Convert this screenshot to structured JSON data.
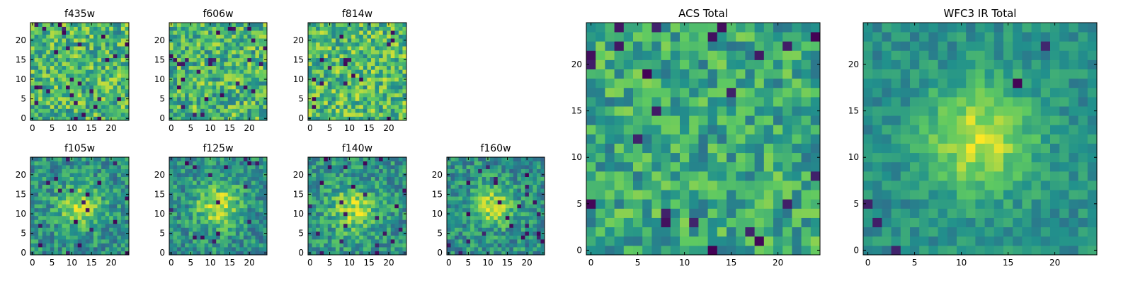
{
  "figure": {
    "background": "#ffffff",
    "colormap": "viridis",
    "colormap_stops": [
      "#440154",
      "#3b528b",
      "#21918c",
      "#5ec962",
      "#fde725"
    ]
  },
  "chart_data": [
    {
      "type": "heatmap",
      "title": "f435w",
      "xlabel": "",
      "ylabel": "",
      "size": 25,
      "xlim": [
        0,
        24
      ],
      "ylim": [
        0,
        24
      ],
      "xticks": [
        0,
        5,
        10,
        15,
        20
      ],
      "yticks": [
        0,
        5,
        10,
        15,
        20
      ],
      "noise_level": 0.26,
      "blob_amplitude": 0.0,
      "blob_center": [
        12,
        12
      ],
      "blob_sigma": 4,
      "base_level": 0.66,
      "dark_fraction": 0.04,
      "seed": 11
    },
    {
      "type": "heatmap",
      "title": "f606w",
      "xlabel": "",
      "ylabel": "",
      "size": 25,
      "xlim": [
        0,
        24
      ],
      "ylim": [
        0,
        24
      ],
      "xticks": [
        0,
        5,
        10,
        15,
        20
      ],
      "yticks": [
        0,
        5,
        10,
        15,
        20
      ],
      "noise_level": 0.26,
      "blob_amplitude": 0.0,
      "blob_center": [
        12,
        12
      ],
      "blob_sigma": 4,
      "base_level": 0.66,
      "dark_fraction": 0.04,
      "seed": 23
    },
    {
      "type": "heatmap",
      "title": "f814w",
      "xlabel": "",
      "ylabel": "",
      "size": 25,
      "xlim": [
        0,
        24
      ],
      "ylim": [
        0,
        24
      ],
      "xticks": [
        0,
        5,
        10,
        15,
        20
      ],
      "yticks": [
        0,
        5,
        10,
        15,
        20
      ],
      "noise_level": 0.26,
      "blob_amplitude": 0.0,
      "blob_center": [
        12,
        12
      ],
      "blob_sigma": 4,
      "base_level": 0.68,
      "dark_fraction": 0.03,
      "seed": 37
    },
    {
      "type": "heatmap",
      "title": "f105w",
      "xlabel": "",
      "ylabel": "",
      "size": 25,
      "xlim": [
        0,
        24
      ],
      "ylim": [
        0,
        24
      ],
      "xticks": [
        0,
        5,
        10,
        15,
        20
      ],
      "yticks": [
        0,
        5,
        10,
        15,
        20
      ],
      "noise_level": 0.2,
      "blob_amplitude": 0.35,
      "blob_center": [
        12,
        12
      ],
      "blob_sigma": 4,
      "base_level": 0.5,
      "dark_fraction": 0.03,
      "seed": 41
    },
    {
      "type": "heatmap",
      "title": "f125w",
      "xlabel": "",
      "ylabel": "",
      "size": 25,
      "xlim": [
        0,
        24
      ],
      "ylim": [
        0,
        24
      ],
      "xticks": [
        0,
        5,
        10,
        15,
        20
      ],
      "yticks": [
        0,
        5,
        10,
        15,
        20
      ],
      "noise_level": 0.2,
      "blob_amplitude": 0.4,
      "blob_center": [
        12,
        12
      ],
      "blob_sigma": 4,
      "base_level": 0.5,
      "dark_fraction": 0.03,
      "seed": 53
    },
    {
      "type": "heatmap",
      "title": "f140w",
      "xlabel": "",
      "ylabel": "",
      "size": 25,
      "xlim": [
        0,
        24
      ],
      "ylim": [
        0,
        24
      ],
      "xticks": [
        0,
        5,
        10,
        15,
        20
      ],
      "yticks": [
        0,
        5,
        10,
        15,
        20
      ],
      "noise_level": 0.2,
      "blob_amplitude": 0.35,
      "blob_center": [
        11,
        11
      ],
      "blob_sigma": 4,
      "base_level": 0.52,
      "dark_fraction": 0.03,
      "seed": 67
    },
    {
      "type": "heatmap",
      "title": "f160w",
      "xlabel": "",
      "ylabel": "",
      "size": 25,
      "xlim": [
        0,
        24
      ],
      "ylim": [
        0,
        24
      ],
      "xticks": [
        0,
        5,
        10,
        15,
        20
      ],
      "yticks": [
        0,
        5,
        10,
        15,
        20
      ],
      "noise_level": 0.2,
      "blob_amplitude": 0.4,
      "blob_center": [
        11,
        12
      ],
      "blob_sigma": 3.5,
      "base_level": 0.5,
      "dark_fraction": 0.04,
      "seed": 79
    },
    {
      "type": "heatmap",
      "title": "ACS Total",
      "xlabel": "",
      "ylabel": "",
      "size": 25,
      "xlim": [
        0,
        24
      ],
      "ylim": [
        0,
        24
      ],
      "xticks": [
        0,
        5,
        10,
        15,
        20
      ],
      "yticks": [
        0,
        5,
        10,
        15,
        20
      ],
      "noise_level": 0.22,
      "blob_amplitude": 0.0,
      "blob_center": [
        12,
        12
      ],
      "blob_sigma": 4,
      "base_level": 0.6,
      "dark_fraction": 0.04,
      "seed": 97
    },
    {
      "type": "heatmap",
      "title": "WFC3 IR Total",
      "xlabel": "",
      "ylabel": "",
      "size": 25,
      "xlim": [
        0,
        24
      ],
      "ylim": [
        0,
        24
      ],
      "xticks": [
        0,
        5,
        10,
        15,
        20
      ],
      "yticks": [
        0,
        5,
        10,
        15,
        20
      ],
      "noise_level": 0.12,
      "blob_amplitude": 0.42,
      "blob_center": [
        12,
        12
      ],
      "blob_sigma": 4,
      "base_level": 0.5,
      "dark_fraction": 0.02,
      "seed": 103
    }
  ]
}
